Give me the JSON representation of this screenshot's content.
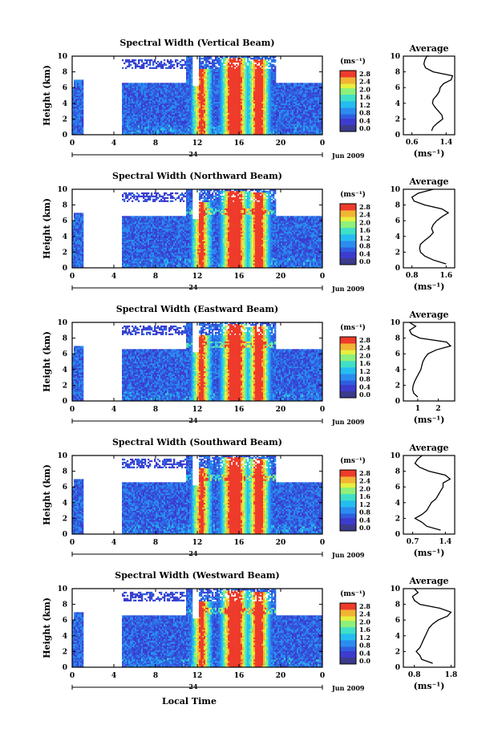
{
  "figure": {
    "xlabel": "Local Time",
    "colorbar_unit": "(ms⁻¹)",
    "colorbar_ticks": [
      "0.0",
      "0.4",
      "0.8",
      "1.2",
      "1.6",
      "2.0",
      "2.4",
      "2.8"
    ],
    "colorscale": [
      "#3b3b8a",
      "#3c3ccf",
      "#2f5fe0",
      "#2a8cf0",
      "#25bdf0",
      "#3fe0c8",
      "#8ef07a",
      "#e6f040",
      "#f3b433",
      "#ee3b2b"
    ],
    "date_label": "Jun 2009",
    "day_label": "24",
    "average_title": "Average",
    "avg_xlabel": "(ms⁻¹)"
  },
  "chart_data": [
    {
      "type": "heatmap",
      "title": "Spectral Width (Vertical Beam)",
      "ylabel": "Height (km)",
      "xlabel": "Local Time",
      "x_ticks": [
        "0",
        "4",
        "8",
        "12",
        "16",
        "20",
        "0"
      ],
      "y_ticks": [
        "0",
        "2",
        "4",
        "6",
        "8",
        "10"
      ],
      "xlim": [
        0,
        24
      ],
      "ylim": [
        0,
        10
      ],
      "color_range": [
        0,
        2.8
      ],
      "date": "Jun 2009",
      "day": "24"
    },
    {
      "type": "line",
      "title": "Average",
      "xlabel": "(ms⁻¹)",
      "x_ticks": [
        "0.6",
        "1.4"
      ],
      "xlim": [
        0.4,
        1.6
      ],
      "ylim": [
        0,
        10
      ],
      "y_ticks": [
        "0",
        "2",
        "4",
        "6",
        "8",
        "10"
      ],
      "x": [
        1.06,
        1.1,
        1.2,
        1.32,
        1.3,
        1.22,
        1.14,
        1.08,
        1.1,
        1.18,
        1.24,
        1.26,
        1.34,
        1.52,
        1.55,
        1.1,
        0.92,
        0.88,
        0.9,
        0.95,
        1.0
      ],
      "y": [
        0.5,
        1,
        1.5,
        2,
        2.5,
        3,
        3.5,
        4,
        4.5,
        5,
        5.5,
        6,
        6.5,
        7,
        7.5,
        8,
        8.5,
        9,
        9.5,
        10,
        10
      ]
    },
    {
      "type": "heatmap",
      "title": "Spectral Width (Northward Beam)",
      "ylabel": "Height (km)",
      "xlabel": "Local Time",
      "x_ticks": [
        "0",
        "4",
        "8",
        "12",
        "16",
        "20",
        "0"
      ],
      "y_ticks": [
        "0",
        "2",
        "4",
        "6",
        "8",
        "10"
      ],
      "xlim": [
        0,
        24
      ],
      "ylim": [
        0,
        10
      ],
      "color_range": [
        0,
        2.8
      ],
      "date": "Jun 2009",
      "day": "24"
    },
    {
      "type": "line",
      "title": "Average",
      "xlabel": "(ms⁻¹)",
      "x_ticks": [
        "0.8",
        "1.6"
      ],
      "xlim": [
        0.6,
        1.8
      ],
      "ylim": [
        0,
        10
      ],
      "y_ticks": [
        "0",
        "2",
        "4",
        "6",
        "8",
        "10"
      ],
      "x": [
        1.6,
        1.3,
        1.1,
        1.0,
        0.98,
        1.0,
        1.1,
        1.22,
        1.3,
        1.26,
        1.3,
        1.38,
        1.5,
        1.65,
        1.5,
        1.1,
        0.85,
        0.8,
        0.95,
        1.3
      ],
      "y": [
        0.5,
        1,
        1.5,
        2,
        2.5,
        3,
        3.5,
        4,
        4.5,
        5,
        5.5,
        6,
        6.5,
        7,
        7.5,
        8,
        8.5,
        9,
        9.5,
        10
      ]
    },
    {
      "type": "heatmap",
      "title": "Spectral Width (Eastward Beam)",
      "ylabel": "Height (km)",
      "xlabel": "Local Time",
      "x_ticks": [
        "0",
        "4",
        "8",
        "12",
        "16",
        "20",
        "0"
      ],
      "y_ticks": [
        "0",
        "2",
        "4",
        "6",
        "8",
        "10"
      ],
      "xlim": [
        0,
        24
      ],
      "ylim": [
        0,
        10
      ],
      "color_range": [
        0,
        2.8
      ],
      "date": "Jun 2009",
      "day": "24"
    },
    {
      "type": "line",
      "title": "Average",
      "xlabel": "(ms⁻¹)",
      "x_ticks": [
        "1",
        "2"
      ],
      "xlim": [
        0.3,
        2.8
      ],
      "ylim": [
        0,
        10
      ],
      "y_ticks": [
        "0",
        "2",
        "4",
        "6",
        "8",
        "10"
      ],
      "x": [
        1.0,
        0.8,
        0.75,
        0.78,
        0.85,
        0.95,
        1.05,
        1.15,
        1.2,
        1.25,
        1.35,
        1.5,
        1.9,
        2.6,
        2.4,
        1.1,
        0.7,
        0.6,
        0.9,
        0.6
      ],
      "y": [
        0.5,
        1,
        1.5,
        2,
        2.5,
        3,
        3.5,
        4,
        4.5,
        5,
        5.5,
        6,
        6.5,
        7,
        7.5,
        8,
        8.5,
        9,
        9.5,
        10
      ]
    },
    {
      "type": "heatmap",
      "title": "Spectral Width (Southward Beam)",
      "ylabel": "Height (km)",
      "xlabel": "Local Time",
      "x_ticks": [
        "0",
        "4",
        "8",
        "12",
        "16",
        "20",
        "0"
      ],
      "y_ticks": [
        "0",
        "2",
        "4",
        "6",
        "8",
        "10"
      ],
      "xlim": [
        0,
        24
      ],
      "ylim": [
        0,
        10
      ],
      "color_range": [
        0,
        2.8
      ],
      "date": "Jun 2009",
      "day": "24"
    },
    {
      "type": "line",
      "title": "Average",
      "xlabel": "(ms⁻¹)",
      "x_ticks": [
        "0.7",
        "1.4"
      ],
      "xlim": [
        0.5,
        1.6
      ],
      "ylim": [
        0,
        10
      ],
      "y_ticks": [
        "0",
        "2",
        "4",
        "6",
        "8",
        "10"
      ],
      "x": [
        1.3,
        1.0,
        0.9,
        0.75,
        0.9,
        1.0,
        1.05,
        1.1,
        1.2,
        1.25,
        1.3,
        1.35,
        1.35,
        1.5,
        1.4,
        1.05,
        0.85,
        0.75,
        0.8,
        0.9
      ],
      "y": [
        0.5,
        1,
        1.5,
        2,
        2.5,
        3,
        3.5,
        4,
        4.5,
        5,
        5.5,
        6,
        6.5,
        7,
        7.5,
        8,
        8.5,
        9,
        9.5,
        10
      ]
    },
    {
      "type": "heatmap",
      "title": "Spectral Width (Westward Beam)",
      "ylabel": "Height (km)",
      "xlabel": "Local Time",
      "x_ticks": [
        "0",
        "4",
        "8",
        "12",
        "16",
        "20",
        "0"
      ],
      "y_ticks": [
        "0",
        "2",
        "4",
        "6",
        "8",
        "10"
      ],
      "xlim": [
        0,
        24
      ],
      "ylim": [
        0,
        10
      ],
      "color_range": [
        0,
        2.8
      ],
      "date": "Jun 2009",
      "day": "24"
    },
    {
      "type": "line",
      "title": "Average",
      "xlabel": "(ms⁻¹)",
      "x_ticks": [
        "0.8",
        "1.8"
      ],
      "xlim": [
        0.5,
        1.9
      ],
      "ylim": [
        0,
        10
      ],
      "y_ticks": [
        "0",
        "2",
        "4",
        "6",
        "8",
        "10"
      ],
      "x": [
        1.3,
        1.0,
        0.95,
        0.85,
        0.95,
        1.0,
        1.05,
        1.1,
        1.15,
        1.2,
        1.3,
        1.45,
        1.7,
        1.8,
        1.5,
        0.95,
        0.8,
        0.75,
        0.9,
        0.8
      ],
      "y": [
        0.5,
        1,
        1.5,
        2,
        2.5,
        3,
        3.5,
        4,
        4.5,
        5,
        5.5,
        6,
        6.5,
        7,
        7.5,
        8,
        8.5,
        9,
        9.5,
        10
      ]
    }
  ]
}
